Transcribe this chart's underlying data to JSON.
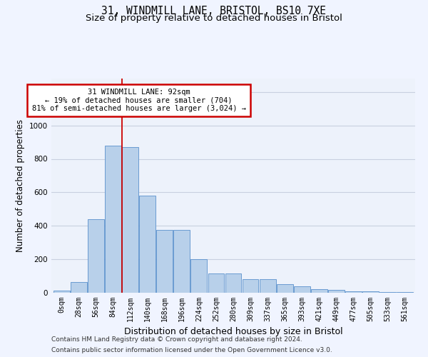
{
  "title_line1": "31, WINDMILL LANE, BRISTOL, BS10 7XE",
  "title_line2": "Size of property relative to detached houses in Bristol",
  "xlabel": "Distribution of detached houses by size in Bristol",
  "ylabel": "Number of detached properties",
  "bar_labels": [
    "0sqm",
    "28sqm",
    "56sqm",
    "84sqm",
    "112sqm",
    "140sqm",
    "168sqm",
    "196sqm",
    "224sqm",
    "252sqm",
    "280sqm",
    "309sqm",
    "337sqm",
    "365sqm",
    "393sqm",
    "421sqm",
    "449sqm",
    "477sqm",
    "505sqm",
    "533sqm",
    "561sqm"
  ],
  "bar_values": [
    12,
    65,
    440,
    878,
    870,
    580,
    375,
    375,
    200,
    115,
    115,
    80,
    80,
    50,
    40,
    22,
    15,
    10,
    8,
    5,
    5
  ],
  "bar_color": "#b8d0ea",
  "bar_edge_color": "#5a90cc",
  "background_color": "#edf2fb",
  "grid_color": "#c8d0e0",
  "ylim": [
    0,
    1280
  ],
  "yticks": [
    0,
    200,
    400,
    600,
    800,
    1000,
    1200
  ],
  "vline_x": 3.5,
  "annotation_text": "31 WINDMILL LANE: 92sqm\n← 19% of detached houses are smaller (704)\n81% of semi-detached houses are larger (3,024) →",
  "annotation_box_color": "#ffffff",
  "annotation_box_edge_color": "#cc0000",
  "vline_color": "#cc0000",
  "footnote_line1": "Contains HM Land Registry data © Crown copyright and database right 2024.",
  "footnote_line2": "Contains public sector information licensed under the Open Government Licence v3.0.",
  "title_fontsize": 10.5,
  "subtitle_fontsize": 9.5,
  "axis_label_fontsize": 8.5,
  "tick_fontsize": 7,
  "annotation_fontsize": 7.5,
  "footnote_fontsize": 6.5
}
